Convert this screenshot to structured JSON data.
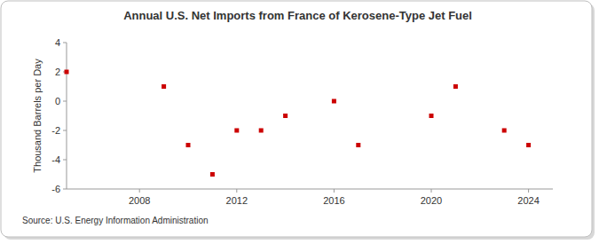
{
  "chart_data": {
    "type": "scatter",
    "title": "Annual U.S. Net Imports from France of Kerosene-Type Jet Fuel",
    "y_label": "Thousand Barrels per Day",
    "source": "Source: U.S. Energy Information Administration",
    "x": [
      2005,
      2009,
      2010,
      2011,
      2012,
      2013,
      2014,
      2016,
      2017,
      2020,
      2021,
      2023,
      2024
    ],
    "values": [
      2,
      1,
      -3,
      -5,
      -2,
      -2,
      -1,
      0,
      -3,
      -1,
      1,
      -2,
      -3
    ],
    "color": "#cc0000",
    "marker": "square",
    "xlim": [
      2005,
      2025
    ],
    "xticks": [
      2008,
      2012,
      2016,
      2020,
      2024
    ],
    "ylim": [
      -6,
      4
    ],
    "yticks": [
      -6,
      -4,
      -2,
      0,
      2,
      4
    ],
    "grid": false
  }
}
